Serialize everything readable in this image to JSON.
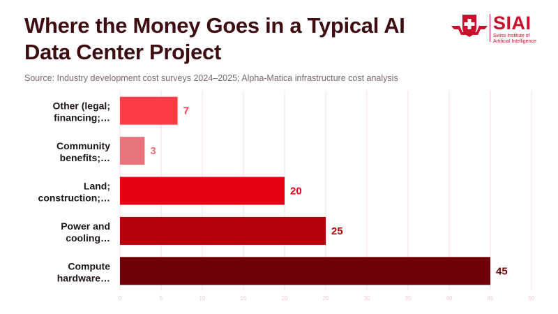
{
  "header": {
    "title": "Where the Money Goes in a Typical AI Data Center Project",
    "source": "Source: Industry development cost surveys 2024–2025; Alpha-Matica infrastructure cost analysis"
  },
  "logo": {
    "name": "SIAI",
    "subtitle_line1": "Swiss Institute of",
    "subtitle_line2": "Artificial Intelligence"
  },
  "colors": {
    "title": "#3d0d12",
    "grid": "#f6dde1",
    "tick": "#f0c9cf"
  },
  "chart_data": {
    "type": "bar",
    "orientation": "horizontal",
    "title": "Where the Money Goes in a Typical AI Data Center Project",
    "categories": [
      [
        "Other (legal;",
        "financing;…"
      ],
      [
        "Community",
        "benefits;…"
      ],
      [
        "Land;",
        "construction;…"
      ],
      [
        "Power and",
        "cooling…"
      ],
      [
        "Compute",
        "hardware…"
      ]
    ],
    "values": [
      7,
      3,
      20,
      25,
      45
    ],
    "bar_colors": [
      "#fc3c46",
      "#e8737a",
      "#e60013",
      "#b5000c",
      "#6e0007"
    ],
    "xlim": [
      0,
      50
    ],
    "xticks": [
      0,
      5,
      10,
      15,
      20,
      25,
      30,
      35,
      40,
      45,
      50
    ],
    "xlabel": "",
    "ylabel": "",
    "grid": true
  }
}
